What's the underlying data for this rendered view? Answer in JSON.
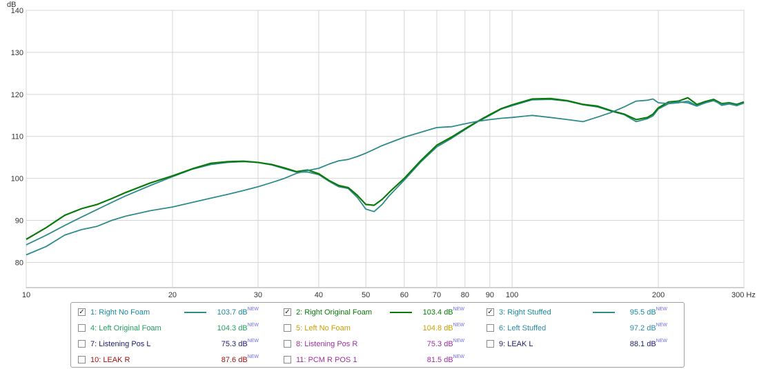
{
  "chart_data": {
    "type": "line",
    "title": "",
    "xlabel": "",
    "ylabel": "dB",
    "x_unit": "Hz",
    "x_scale": "log",
    "xlim": [
      10,
      300
    ],
    "ylim": [
      74,
      140
    ],
    "grid": true,
    "x_ticks": [
      10,
      20,
      30,
      40,
      50,
      60,
      70,
      80,
      90,
      100,
      200,
      300
    ],
    "x_tick_labels": [
      "10",
      "20",
      "30",
      "40",
      "50",
      "60",
      "70",
      "80",
      "90",
      "100",
      "200",
      "300 Hz"
    ],
    "y_ticks": [
      80,
      90,
      100,
      110,
      120,
      130,
      140
    ],
    "series": [
      {
        "name": "1: Right No Foam",
        "color": "#2e8b8b",
        "x": [
          10,
          11,
          12,
          13,
          14,
          15,
          16,
          18,
          20,
          22,
          24,
          26,
          28,
          30,
          32,
          34,
          36,
          38,
          40,
          42,
          44,
          46,
          48,
          50,
          52,
          54,
          56,
          60,
          65,
          70,
          75,
          80,
          85,
          90,
          95,
          100,
          110,
          120,
          130,
          140,
          150,
          160,
          170,
          180,
          190,
          195,
          200,
          210,
          220,
          230,
          240,
          250,
          260,
          270,
          280,
          290,
          300
        ],
        "y": [
          84.2,
          86.5,
          88.8,
          90.8,
          92.6,
          94.3,
          95.8,
          98.3,
          100.4,
          102.2,
          103.3,
          103.8,
          104.0,
          103.8,
          103.2,
          102.3,
          101.5,
          101.5,
          100.9,
          99.3,
          98.0,
          97.6,
          95.5,
          92.7,
          92.1,
          93.8,
          96.0,
          99.6,
          104.0,
          107.5,
          109.5,
          111.6,
          113.5,
          115.0,
          116.5,
          117.3,
          118.7,
          118.8,
          118.4,
          117.5,
          117.0,
          116.0,
          115.2,
          113.5,
          114.2,
          114.9,
          116.5,
          117.8,
          118.0,
          118.4,
          117.3,
          118.0,
          118.7,
          117.4,
          117.7,
          117.3,
          118.0
        ]
      },
      {
        "name": "2: Right Original Foam",
        "color": "#0a7a0a",
        "x": [
          10,
          11,
          12,
          13,
          14,
          15,
          16,
          18,
          20,
          22,
          24,
          26,
          28,
          30,
          32,
          34,
          36,
          38,
          40,
          42,
          44,
          46,
          48,
          50,
          52,
          54,
          56,
          60,
          65,
          70,
          75,
          80,
          85,
          90,
          95,
          100,
          110,
          120,
          130,
          140,
          150,
          160,
          170,
          180,
          190,
          195,
          200,
          210,
          220,
          230,
          240,
          250,
          260,
          270,
          280,
          290,
          300
        ],
        "y": [
          85.5,
          88.3,
          91.2,
          92.8,
          93.8,
          95.2,
          96.6,
          98.9,
          100.6,
          102.3,
          103.6,
          104.0,
          104.1,
          103.8,
          103.3,
          102.5,
          101.6,
          102.0,
          101.1,
          99.5,
          98.3,
          97.8,
          96.0,
          93.8,
          93.6,
          95.0,
          96.8,
          100.0,
          104.3,
          107.9,
          109.8,
          111.8,
          113.6,
          115.2,
          116.6,
          117.5,
          118.9,
          119.0,
          118.5,
          117.6,
          117.2,
          116.1,
          115.3,
          114.0,
          114.5,
          115.3,
          116.8,
          118.2,
          118.4,
          119.2,
          117.6,
          118.3,
          118.8,
          117.8,
          118.0,
          117.6,
          118.2
        ]
      },
      {
        "name": "3: Right Stuffed",
        "color": "#2e8b8b",
        "x": [
          10,
          11,
          12,
          13,
          14,
          15,
          16,
          18,
          20,
          22,
          24,
          26,
          28,
          30,
          32,
          34,
          36,
          38,
          40,
          42,
          44,
          46,
          48,
          50,
          52,
          54,
          56,
          60,
          65,
          70,
          75,
          80,
          85,
          90,
          95,
          100,
          110,
          120,
          130,
          140,
          150,
          160,
          170,
          180,
          190,
          195,
          200,
          210,
          220,
          230,
          240,
          250,
          260,
          270,
          280,
          290,
          300
        ],
        "y": [
          81.8,
          83.8,
          86.5,
          87.8,
          88.6,
          90.0,
          91.0,
          92.3,
          93.2,
          94.3,
          95.3,
          96.2,
          97.1,
          98.0,
          99.0,
          100.0,
          101.2,
          101.9,
          102.4,
          103.4,
          104.2,
          104.5,
          105.2,
          106.0,
          106.9,
          107.8,
          108.5,
          109.8,
          111.0,
          112.1,
          112.3,
          113.0,
          113.6,
          114.0,
          114.3,
          114.5,
          115.0,
          114.5,
          114.0,
          113.5,
          114.6,
          115.7,
          117.0,
          118.4,
          118.6,
          118.9,
          118.0,
          117.8,
          118.2,
          118.0,
          117.2,
          118.0,
          118.5,
          117.6,
          117.8,
          117.4,
          117.9
        ]
      }
    ]
  },
  "axis": {
    "y_unit_label": "dB",
    "x_unit_label": "Hz"
  },
  "legend": {
    "items": [
      {
        "label": "1: Right No Foam",
        "checked": true,
        "color": "#1a8a9a",
        "line": true,
        "line_color": "#2e8b8b",
        "value": "103.7 dB",
        "badge": "NEW",
        "value_color": "#1a8a9a"
      },
      {
        "label": "2: Right Original Foam",
        "checked": true,
        "color": "#0a7a0a",
        "line": true,
        "line_color": "#0a7a0a",
        "value": "103.4 dB",
        "badge": "NEW",
        "value_color": "#0a7a0a"
      },
      {
        "label": "3: Right Stuffed",
        "checked": true,
        "color": "#1a8a9a",
        "line": true,
        "line_color": "#2e8b8b",
        "value": "95.5 dB",
        "badge": "NEW",
        "value_color": "#1a8a9a"
      },
      {
        "label": "4: Left Original Foam",
        "checked": false,
        "color": "#20a060",
        "line": false,
        "value": "104.3 dB",
        "badge": "NEW",
        "value_color": "#20a060"
      },
      {
        "label": "5: Left No Foam",
        "checked": false,
        "color": "#c8a000",
        "line": false,
        "value": "104.8 dB",
        "badge": "NEW",
        "value_color": "#c8a000"
      },
      {
        "label": "6: Left Stuffed",
        "checked": false,
        "color": "#2a8aa8",
        "line": false,
        "value": "97.2 dB",
        "badge": "NEW",
        "value_color": "#2a8aa8"
      },
      {
        "label": "7: Listening Pos L",
        "checked": false,
        "color": "#1a1a6a",
        "line": false,
        "value": "75.3 dB",
        "badge": "NEW",
        "value_color": "#1a1a6a"
      },
      {
        "label": "8: Listening Pos R",
        "checked": false,
        "color": "#a030a0",
        "line": false,
        "value": "75.3 dB",
        "badge": "NEW",
        "value_color": "#a030a0"
      },
      {
        "label": "9: LEAK L",
        "checked": false,
        "color": "#1a1a6a",
        "line": false,
        "value": "88.1 dB",
        "badge": "NEW",
        "value_color": "#1a1a6a"
      },
      {
        "label": "10: LEAK R",
        "checked": false,
        "color": "#a01010",
        "line": false,
        "value": "87.6 dB",
        "badge": "NEW",
        "value_color": "#a01010"
      },
      {
        "label": "11: PCM R POS 1",
        "checked": false,
        "color": "#a030a0",
        "line": false,
        "value": "81.5 dB",
        "badge": "NEW",
        "value_color": "#a030a0"
      }
    ],
    "badge_color": "#6a6aff"
  }
}
